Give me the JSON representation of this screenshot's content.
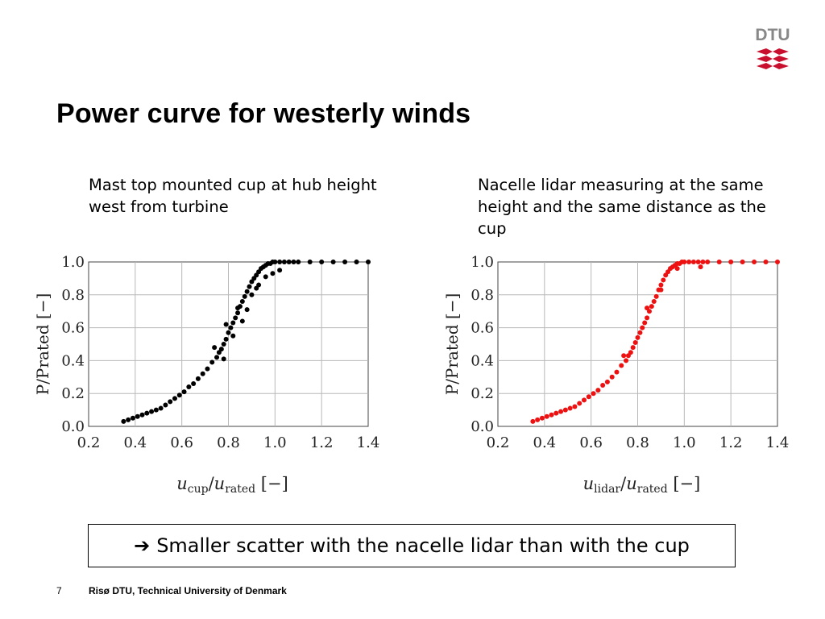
{
  "slide": {
    "title": "Power curve for westerly winds",
    "caption_left": "Mast top mounted cup at hub height west from turbine",
    "caption_right": "Nacelle lidar measuring at the same height and the same distance as the cup",
    "conclusion_arrow": "➔",
    "conclusion": "Smaller scatter with the nacelle lidar than with the cup",
    "page_number": "7",
    "organization": "Risø DTU, Technical University of Denmark",
    "logo_text": "DTU",
    "logo_color": "#c8102e"
  },
  "chart_data": [
    {
      "type": "scatter",
      "title": "",
      "xlabel": "u_cup/u_rated [−]",
      "xlabel_main": "u",
      "xlabel_sub": "cup",
      "xlabel_den": "u",
      "xlabel_den_sub": "rated",
      "xlabel_unit": "[−]",
      "ylabel": "P/Prated [−]",
      "xlim": [
        0.2,
        1.4
      ],
      "ylim": [
        0.0,
        1.0
      ],
      "xticks": [
        "0.2",
        "0.4",
        "0.6",
        "0.8",
        "1.0",
        "1.2",
        "1.4"
      ],
      "yticks": [
        "0.0",
        "0.2",
        "0.4",
        "0.6",
        "0.8",
        "1.0"
      ],
      "grid": true,
      "point_color": "#000000",
      "series": [
        {
          "x": [
            0.35,
            0.37,
            0.39,
            0.41,
            0.43,
            0.45,
            0.47,
            0.49,
            0.51,
            0.53,
            0.55,
            0.57,
            0.59,
            0.61,
            0.63,
            0.65,
            0.67,
            0.69,
            0.71,
            0.73,
            0.75,
            0.76,
            0.77,
            0.78,
            0.79,
            0.8,
            0.81,
            0.82,
            0.83,
            0.84,
            0.85,
            0.86,
            0.87,
            0.88,
            0.89,
            0.9,
            0.91,
            0.92,
            0.93,
            0.94,
            0.95,
            0.96,
            0.97,
            0.98,
            0.99,
            1.0,
            1.02,
            1.04,
            1.06,
            1.08,
            1.1,
            1.15,
            1.2,
            1.25,
            1.3,
            1.35,
            1.4,
            0.74,
            0.79,
            0.82,
            0.86,
            0.9,
            0.93,
            0.96,
            0.99,
            1.02,
            0.78,
            0.84,
            0.88,
            0.92
          ],
          "y": [
            0.03,
            0.04,
            0.05,
            0.06,
            0.07,
            0.08,
            0.09,
            0.1,
            0.11,
            0.13,
            0.15,
            0.17,
            0.19,
            0.21,
            0.24,
            0.26,
            0.29,
            0.32,
            0.35,
            0.39,
            0.42,
            0.45,
            0.47,
            0.5,
            0.53,
            0.57,
            0.6,
            0.63,
            0.66,
            0.69,
            0.73,
            0.76,
            0.79,
            0.82,
            0.85,
            0.88,
            0.9,
            0.92,
            0.94,
            0.96,
            0.97,
            0.98,
            0.99,
            0.99,
            1.0,
            1.0,
            1.0,
            1.0,
            1.0,
            1.0,
            1.0,
            1.0,
            1.0,
            1.0,
            1.0,
            1.0,
            1.0,
            0.48,
            0.62,
            0.55,
            0.64,
            0.8,
            0.86,
            0.91,
            0.93,
            0.95,
            0.41,
            0.72,
            0.71,
            0.84
          ]
        }
      ]
    },
    {
      "type": "scatter",
      "title": "",
      "xlabel": "u_lidar/u_rated [−]",
      "xlabel_main": "u",
      "xlabel_sub": "lidar",
      "xlabel_den": "u",
      "xlabel_den_sub": "rated",
      "xlabel_unit": "[−]",
      "ylabel": "P/Prated [−]",
      "xlim": [
        0.2,
        1.4
      ],
      "ylim": [
        0.0,
        1.0
      ],
      "xticks": [
        "0.2",
        "0.4",
        "0.6",
        "0.8",
        "1.0",
        "1.2",
        "1.4"
      ],
      "yticks": [
        "0.0",
        "0.2",
        "0.4",
        "0.6",
        "0.8",
        "1.0"
      ],
      "grid": true,
      "point_color": "#ee1111",
      "series": [
        {
          "x": [
            0.35,
            0.37,
            0.39,
            0.41,
            0.43,
            0.45,
            0.47,
            0.49,
            0.51,
            0.53,
            0.55,
            0.57,
            0.59,
            0.61,
            0.63,
            0.65,
            0.67,
            0.69,
            0.71,
            0.73,
            0.75,
            0.76,
            0.77,
            0.78,
            0.79,
            0.8,
            0.81,
            0.82,
            0.83,
            0.84,
            0.85,
            0.86,
            0.87,
            0.88,
            0.89,
            0.9,
            0.91,
            0.92,
            0.93,
            0.94,
            0.95,
            0.96,
            0.97,
            0.98,
            0.99,
            1.0,
            1.02,
            1.04,
            1.06,
            1.08,
            1.1,
            1.15,
            1.2,
            1.25,
            1.3,
            1.35,
            1.4,
            0.9,
            0.97,
            1.07,
            0.84,
            0.74
          ],
          "y": [
            0.03,
            0.04,
            0.05,
            0.06,
            0.07,
            0.08,
            0.09,
            0.1,
            0.11,
            0.12,
            0.14,
            0.16,
            0.18,
            0.2,
            0.22,
            0.25,
            0.27,
            0.3,
            0.33,
            0.37,
            0.4,
            0.43,
            0.45,
            0.48,
            0.51,
            0.54,
            0.57,
            0.6,
            0.63,
            0.66,
            0.7,
            0.73,
            0.76,
            0.79,
            0.83,
            0.86,
            0.89,
            0.92,
            0.94,
            0.96,
            0.97,
            0.98,
            0.99,
            0.99,
            1.0,
            1.0,
            1.0,
            1.0,
            1.0,
            1.0,
            1.0,
            1.0,
            1.0,
            1.0,
            1.0,
            1.0,
            1.0,
            0.83,
            0.96,
            0.97,
            0.72,
            0.43
          ]
        }
      ]
    }
  ]
}
